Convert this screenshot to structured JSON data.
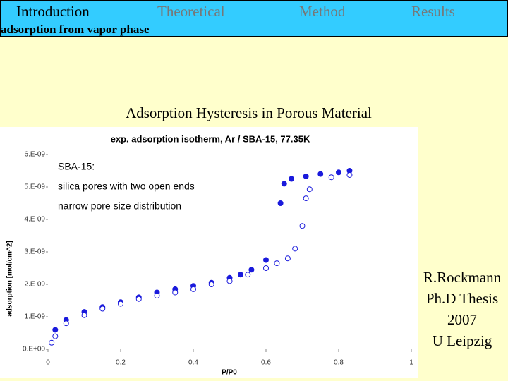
{
  "header": {
    "nav": [
      "Introduction",
      "Theoretical",
      "Method",
      "Results"
    ],
    "subtitle": "adsorption from vapor phase"
  },
  "slide": {
    "heading": "Adsorption Hysteresis in Porous Material",
    "credit": [
      "R.Rockmann",
      "Ph.D Thesis",
      "2007",
      "U Leipzig"
    ]
  },
  "chart_data": {
    "type": "scatter",
    "title": "exp. adsorption isotherm, Ar / SBA-15, 77.35K",
    "annotations": [
      "SBA-15:",
      "silica pores with two open ends",
      "narrow pore size distribution"
    ],
    "x_label": "P/P0",
    "y_label": "adsorption [mol/cm^2]",
    "xlim": [
      0,
      1
    ],
    "xticks": [
      0,
      0.2,
      0.4,
      0.6,
      0.8,
      1
    ],
    "ylim": [
      0,
      6e-09
    ],
    "yticks": [
      {
        "value": 0,
        "label": "0.E+00"
      },
      {
        "value": 1e-09,
        "label": "1.E-09"
      },
      {
        "value": 2e-09,
        "label": "2.E-09"
      },
      {
        "value": 3e-09,
        "label": "3.E-09"
      },
      {
        "value": 4e-09,
        "label": "4.E-09"
      },
      {
        "value": 5e-09,
        "label": "5.E-09"
      },
      {
        "value": 6e-09,
        "label": "6.E-09"
      }
    ],
    "series": [
      {
        "color": "#1a1adc",
        "filled": true,
        "x": [
          0.02,
          0.05,
          0.1,
          0.15,
          0.2,
          0.25,
          0.3,
          0.35,
          0.4,
          0.45,
          0.5,
          0.53,
          0.56,
          0.6,
          0.64,
          0.65,
          0.67,
          0.71,
          0.75,
          0.8,
          0.83
        ],
        "values": [
          6e-10,
          9e-10,
          1.15e-09,
          1.3e-09,
          1.45e-09,
          1.6e-09,
          1.75e-09,
          1.85e-09,
          1.95e-09,
          2.05e-09,
          2.2e-09,
          2.3e-09,
          2.45e-09,
          2.75e-09,
          4.5e-09,
          5.1e-09,
          5.25e-09,
          5.33e-09,
          5.4e-09,
          5.45e-09,
          5.5e-09
        ]
      },
      {
        "color": "#1a1adc",
        "filled": false,
        "x": [
          0.83,
          0.78,
          0.72,
          0.71,
          0.7,
          0.68,
          0.66,
          0.63,
          0.6,
          0.55,
          0.5,
          0.45,
          0.4,
          0.35,
          0.3,
          0.25,
          0.2,
          0.15,
          0.1,
          0.05,
          0.02,
          0.01
        ],
        "values": [
          5.37e-09,
          5.3e-09,
          4.93e-09,
          4.65e-09,
          3.8e-09,
          3.1e-09,
          2.8e-09,
          2.65e-09,
          2.5e-09,
          2.3e-09,
          2.1e-09,
          2e-09,
          1.85e-09,
          1.75e-09,
          1.65e-09,
          1.55e-09,
          1.4e-09,
          1.25e-09,
          1.05e-09,
          8e-10,
          4e-10,
          2e-10
        ]
      }
    ]
  }
}
